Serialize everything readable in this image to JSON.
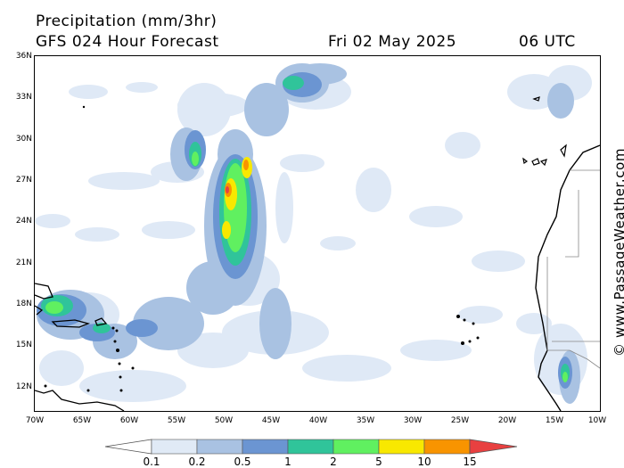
{
  "header": {
    "title": "Precipitation (mm/3hr)",
    "subtitle": "GFS 024 Hour Forecast",
    "valid_date": "Fri 02 May 2025",
    "valid_time": "06 UTC"
  },
  "axes": {
    "latitude_labels": [
      "36N",
      "33N",
      "30N",
      "27N",
      "24N",
      "21N",
      "18N",
      "15N",
      "12N"
    ],
    "longitude_labels": [
      "70W",
      "65W",
      "60W",
      "55W",
      "50W",
      "45W",
      "40W",
      "35W",
      "30W",
      "25W",
      "20W",
      "15W",
      "10W"
    ]
  },
  "credit": "© www.PassageWeather.com",
  "legend": {
    "labels": [
      "0.1",
      "0.2",
      "0.5",
      "1",
      "2",
      "5",
      "10",
      "15"
    ],
    "colors": [
      "#ffffff",
      "#e0eaf6",
      "#a9c2e2",
      "#6b95d2",
      "#30c49a",
      "#60f060",
      "#f8e800",
      "#f89400",
      "#e84040"
    ]
  },
  "colors": {
    "light": "#dfe9f6",
    "pale_blue": "#a9c2e2",
    "blue": "#6b95d2",
    "teal": "#30c49a",
    "green": "#60f060",
    "yellow": "#f8e800",
    "orange": "#f89400",
    "red": "#e84040"
  }
}
